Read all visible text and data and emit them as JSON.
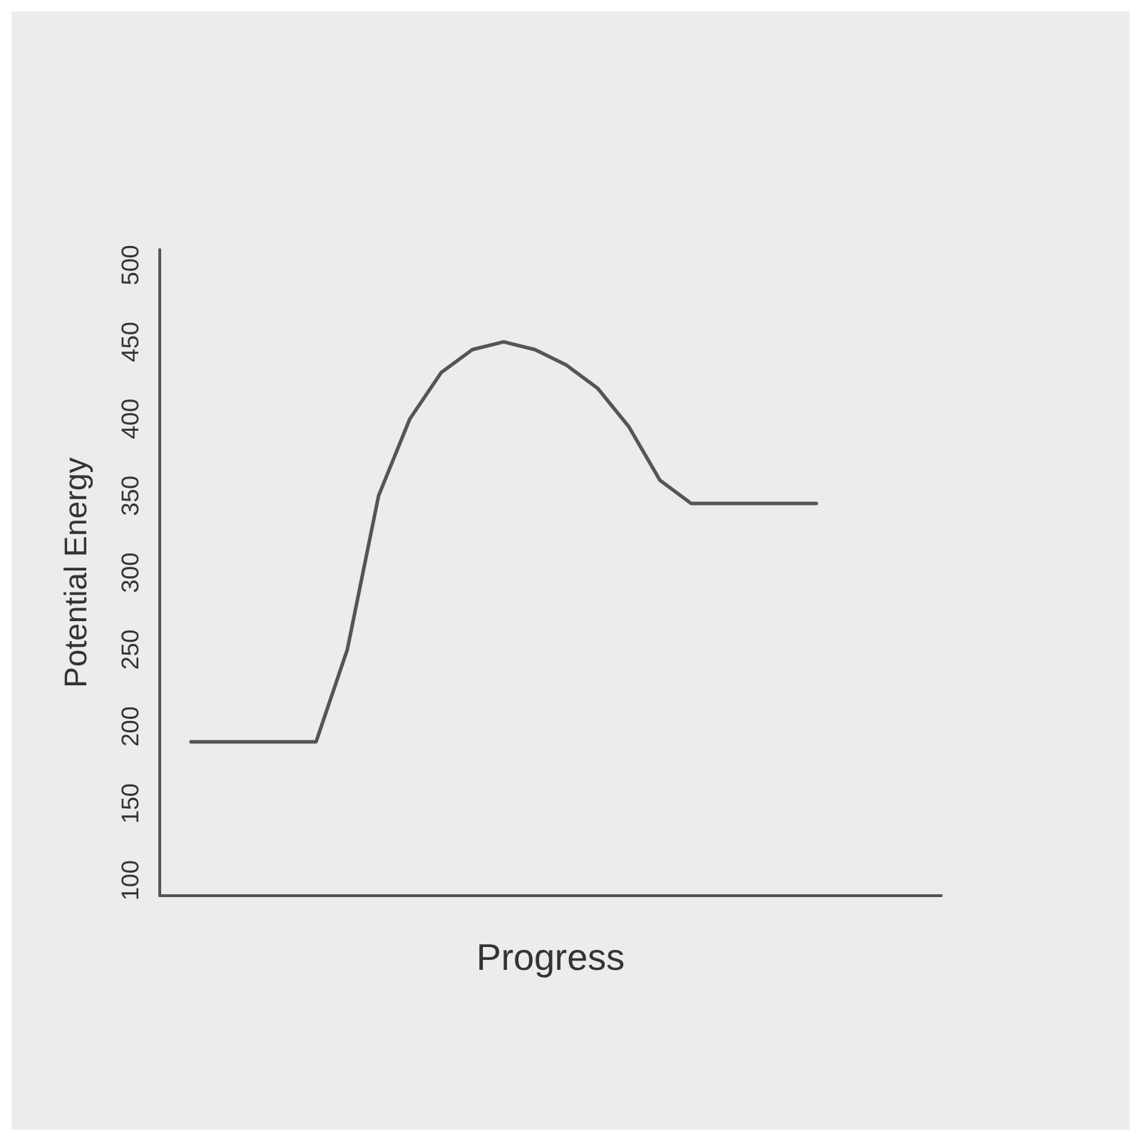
{
  "chart_data": {
    "type": "line",
    "xlabel": "Progress",
    "ylabel": "Potential Energy",
    "categories": [
      null,
      null,
      null,
      null,
      null,
      null,
      null,
      null,
      null,
      null,
      null,
      null,
      null,
      null,
      null,
      null,
      null,
      null,
      null,
      null,
      null,
      null,
      null,
      null,
      null,
      null
    ],
    "values": [
      null,
      190,
      190,
      190,
      190,
      190,
      250,
      350,
      400,
      430,
      445,
      450,
      445,
      435,
      420,
      395,
      360,
      345,
      345,
      345,
      345,
      345,
      null,
      null,
      null,
      null
    ],
    "color": "#555555",
    "ylim": [
      90,
      510
    ],
    "yticks": [
      100,
      150,
      200,
      250,
      300,
      350,
      400,
      450,
      500
    ],
    "grid": false,
    "marker": "none",
    "line_style": "solid"
  }
}
